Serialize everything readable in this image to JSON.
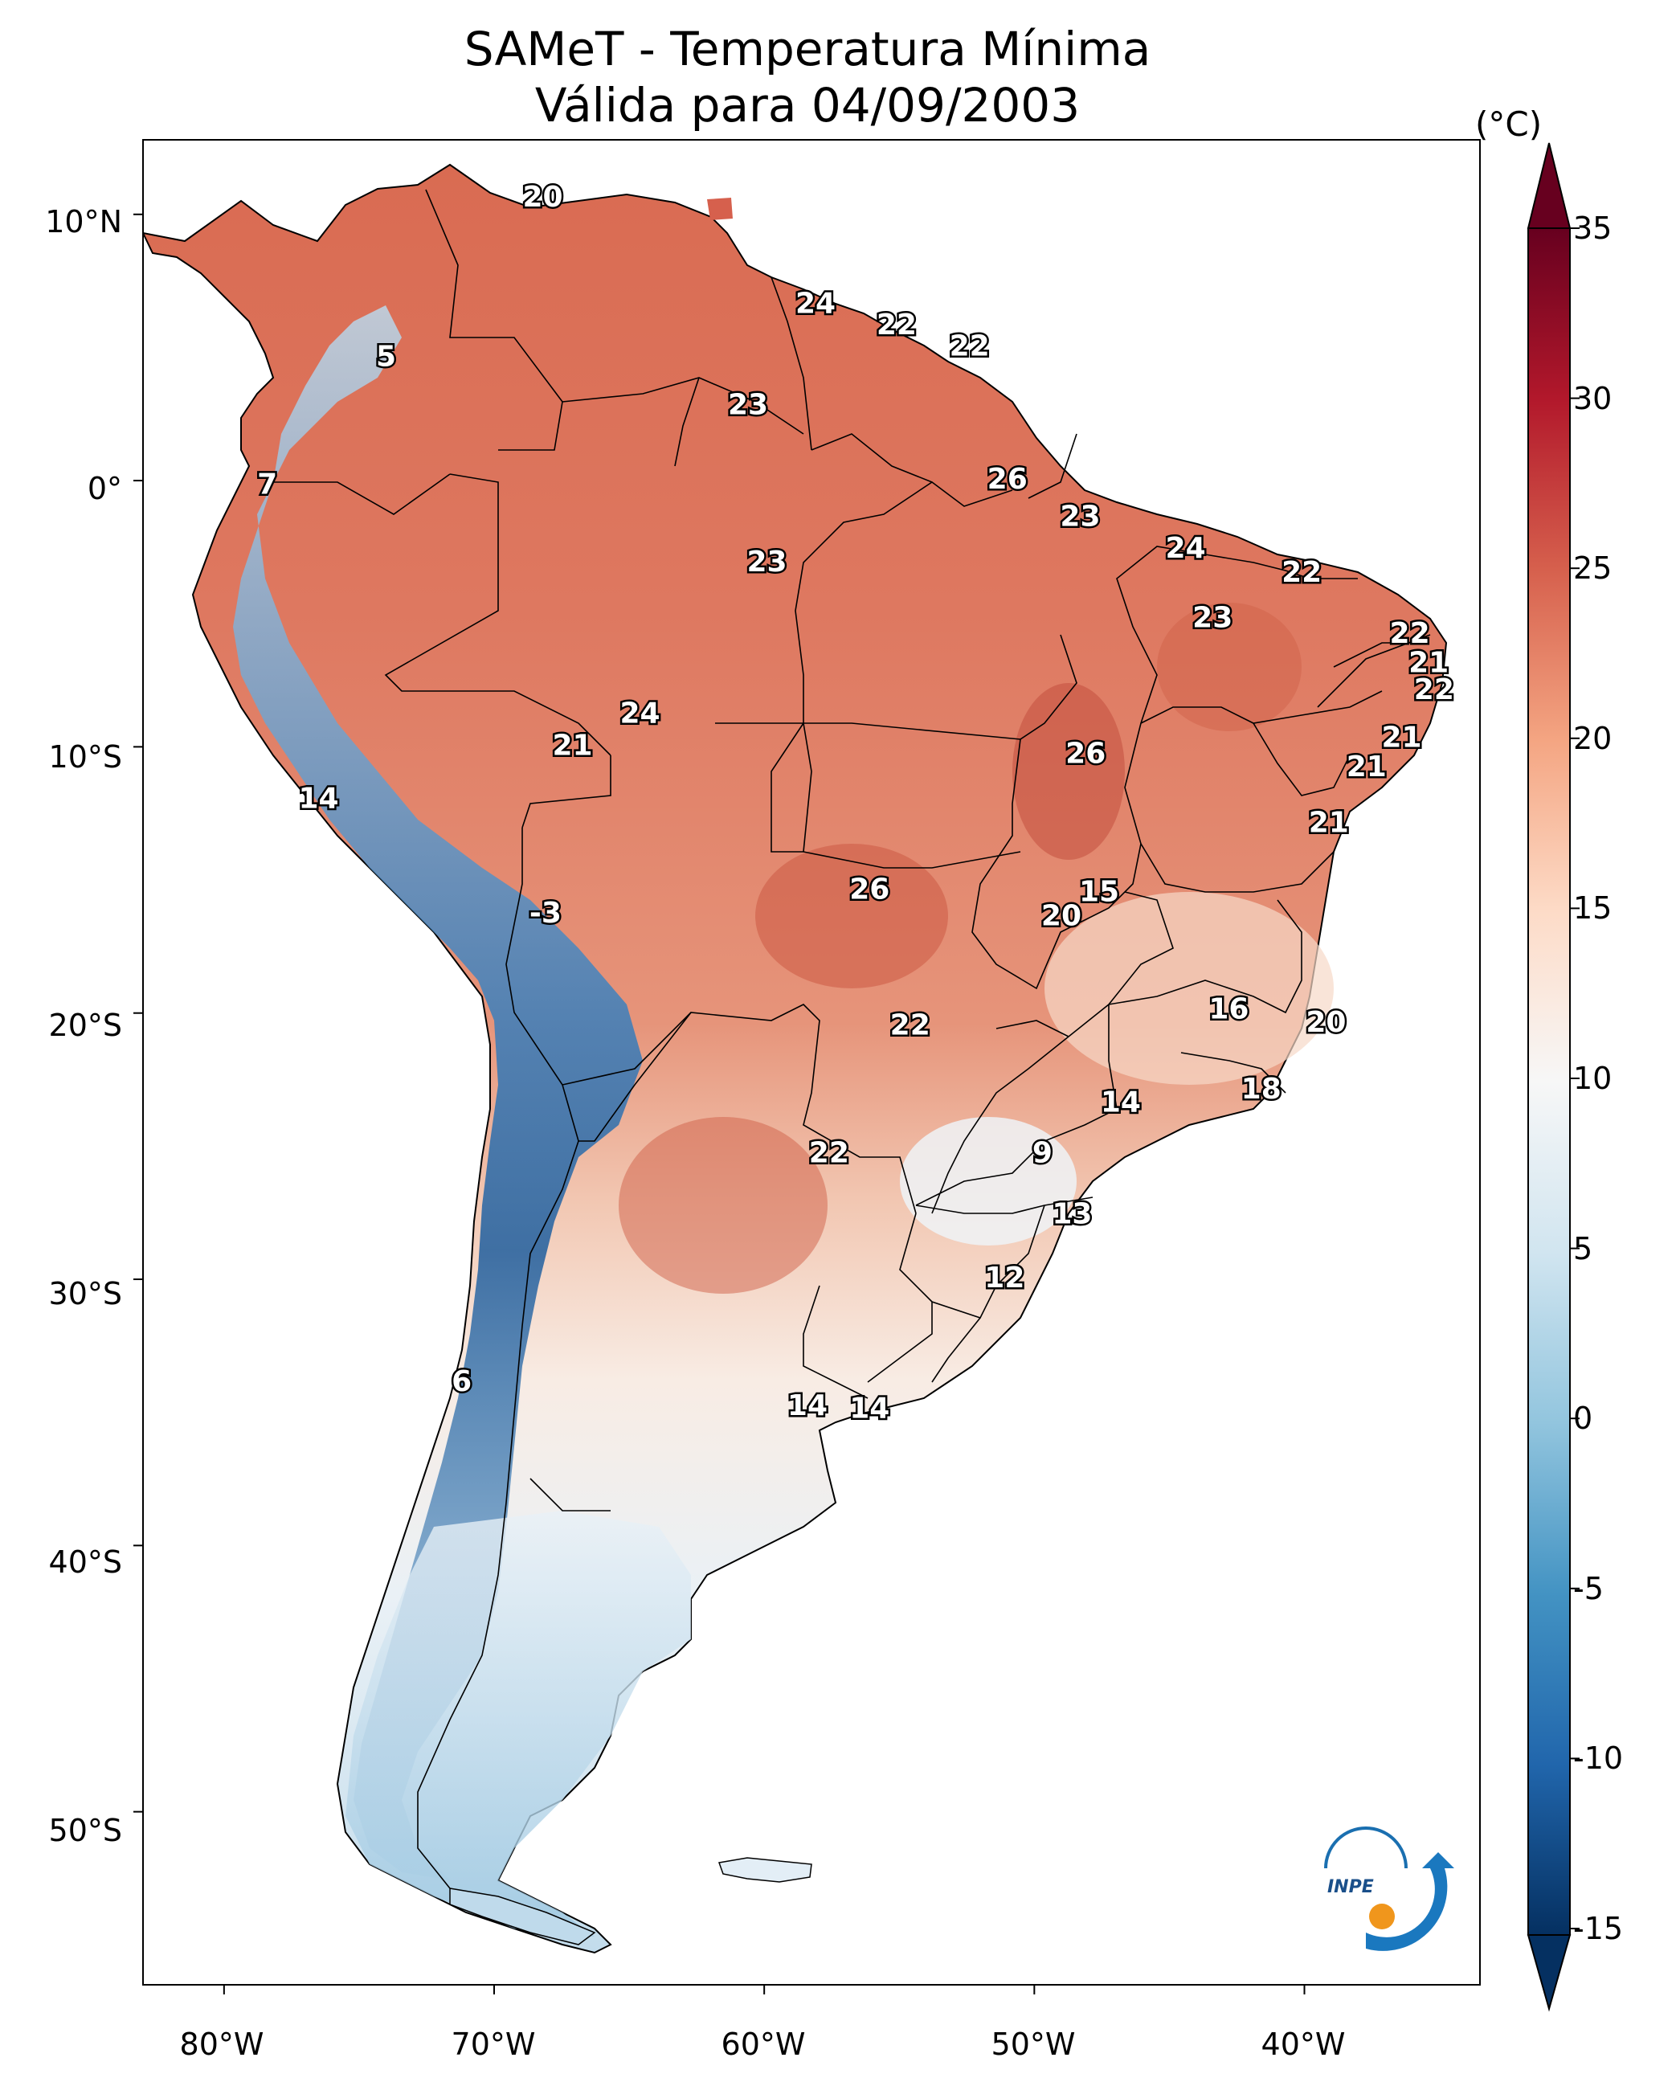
{
  "title_line1": "SAMeT - Temperatura Mínima",
  "title_line2": "Válida para 04/09/2003",
  "colorbar": {
    "unit": "(°C)",
    "ticks": [
      "35",
      "30",
      "25",
      "20",
      "15",
      "10",
      "5",
      "0",
      "-5",
      "-10",
      "-15"
    ],
    "min": -17,
    "max": 37,
    "colors": [
      "#053061",
      "#2166ac",
      "#4393c3",
      "#92c5de",
      "#d1e5f0",
      "#f7f7f7",
      "#fddbc7",
      "#f4a582",
      "#d6604d",
      "#b2182b",
      "#67001f"
    ]
  },
  "axes": {
    "lat_labels": [
      "10°N",
      "0°",
      "10°S",
      "20°S",
      "30°S",
      "40°S",
      "50°S"
    ],
    "lat_values": [
      10,
      0,
      -10,
      -20,
      -30,
      -40,
      -50
    ],
    "lon_labels": [
      "80°W",
      "70°W",
      "60°W",
      "50°W",
      "40°W"
    ],
    "lon_values": [
      -80,
      -70,
      -60,
      -50,
      -40
    ],
    "lon_range": [
      -83,
      -33.5
    ],
    "lat_range": [
      -56.5,
      12.8
    ]
  },
  "temperature_labels": [
    {
      "value": "20",
      "lon": -68.2,
      "lat": 10.6
    },
    {
      "value": "24",
      "lon": -58.1,
      "lat": 6.6
    },
    {
      "value": "22",
      "lon": -55.1,
      "lat": 5.8
    },
    {
      "value": "22",
      "lon": -52.4,
      "lat": 5.0
    },
    {
      "value": "23",
      "lon": -60.6,
      "lat": 2.8
    },
    {
      "value": "5",
      "lon": -74.0,
      "lat": 4.6
    },
    {
      "value": "26",
      "lon": -51.0,
      "lat": 0.0
    },
    {
      "value": "7",
      "lon": -78.4,
      "lat": -0.2
    },
    {
      "value": "23",
      "lon": -48.3,
      "lat": -1.4
    },
    {
      "value": "24",
      "lon": -44.4,
      "lat": -2.6
    },
    {
      "value": "23",
      "lon": -59.9,
      "lat": -3.1
    },
    {
      "value": "22",
      "lon": -40.1,
      "lat": -3.5
    },
    {
      "value": "23",
      "lon": -43.4,
      "lat": -5.2
    },
    {
      "value": "22",
      "lon": -36.1,
      "lat": -5.8
    },
    {
      "value": "21",
      "lon": -35.4,
      "lat": -6.9
    },
    {
      "value": "22",
      "lon": -35.2,
      "lat": -7.9
    },
    {
      "value": "24",
      "lon": -64.6,
      "lat": -8.8
    },
    {
      "value": "21",
      "lon": -36.4,
      "lat": -9.7
    },
    {
      "value": "26",
      "lon": -48.1,
      "lat": -10.3
    },
    {
      "value": "21",
      "lon": -67.1,
      "lat": -10.0
    },
    {
      "value": "21",
      "lon": -37.7,
      "lat": -10.8
    },
    {
      "value": "14",
      "lon": -76.5,
      "lat": -12.0
    },
    {
      "value": "21",
      "lon": -39.1,
      "lat": -12.9
    },
    {
      "value": "15",
      "lon": -47.6,
      "lat": -15.5
    },
    {
      "value": "26",
      "lon": -56.1,
      "lat": -15.4
    },
    {
      "value": "20",
      "lon": -49.0,
      "lat": -16.4
    },
    {
      "value": "-3",
      "lon": -68.1,
      "lat": -16.3
    },
    {
      "value": "16",
      "lon": -42.8,
      "lat": -19.9
    },
    {
      "value": "20",
      "lon": -39.2,
      "lat": -20.4
    },
    {
      "value": "22",
      "lon": -54.6,
      "lat": -20.5
    },
    {
      "value": "18",
      "lon": -41.6,
      "lat": -22.9
    },
    {
      "value": "14",
      "lon": -46.8,
      "lat": -23.4
    },
    {
      "value": "22",
      "lon": -57.6,
      "lat": -25.3
    },
    {
      "value": "9",
      "lon": -49.7,
      "lat": -25.3
    },
    {
      "value": "13",
      "lon": -48.6,
      "lat": -27.6
    },
    {
      "value": "12",
      "lon": -51.1,
      "lat": -30.0
    },
    {
      "value": "6",
      "lon": -71.2,
      "lat": -33.9
    },
    {
      "value": "14",
      "lon": -58.4,
      "lat": -34.8
    },
    {
      "value": "14",
      "lon": -56.1,
      "lat": -34.9
    }
  ],
  "logo": {
    "text": "INPE"
  }
}
